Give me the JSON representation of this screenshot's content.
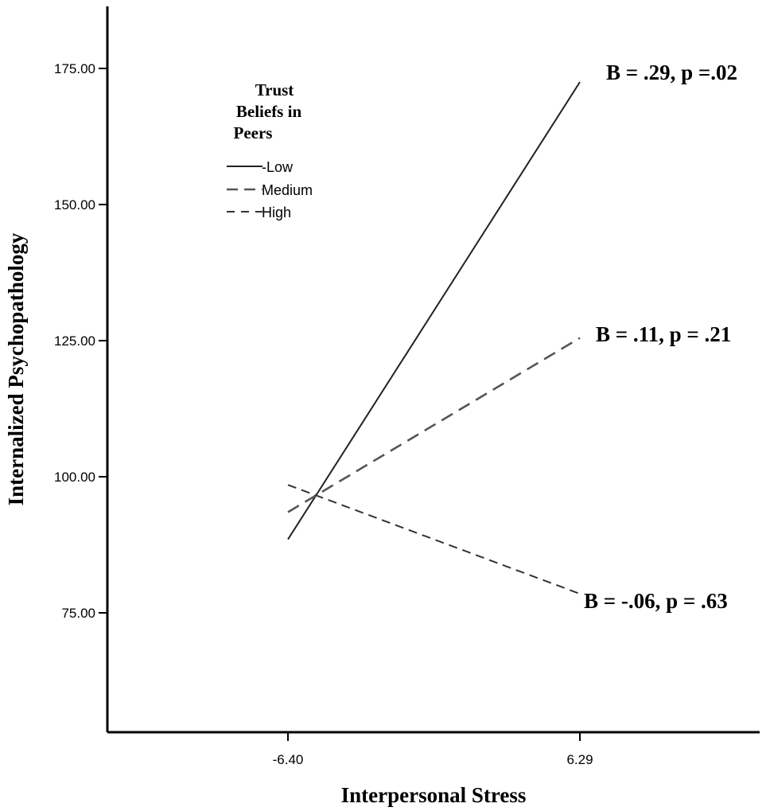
{
  "chart_data": {
    "type": "line",
    "title": "",
    "xlabel": "Interpersonal Stress",
    "ylabel": "Internalized Psychopathology",
    "x": [
      -6.4,
      6.29
    ],
    "x_tick_labels": [
      "-6.40",
      "6.29"
    ],
    "y_ticks": [
      75,
      100,
      125,
      150,
      175
    ],
    "y_tick_labels": [
      "75.00",
      "100.00",
      "125.00",
      "150.00",
      "175.00"
    ],
    "ylim": [
      56,
      188
    ],
    "grid": false,
    "legend": {
      "title_lines": [
        "Trust",
        "Beliefs in",
        "Peers"
      ],
      "placement": "top-left"
    },
    "series": [
      {
        "name": "-Low",
        "values": [
          88.5,
          172.5
        ],
        "color": "#222222",
        "style": "solid",
        "annotation": "B = .29, p =.02"
      },
      {
        "name": "Medium",
        "values": [
          93.5,
          125.5
        ],
        "color": "#555555",
        "style": "dashed-long",
        "annotation": "B = .11, p = .21"
      },
      {
        "name": "High",
        "values": [
          98.5,
          78.5
        ],
        "color": "#333333",
        "style": "dashed",
        "annotation": "B = -.06, p = .63"
      }
    ]
  }
}
